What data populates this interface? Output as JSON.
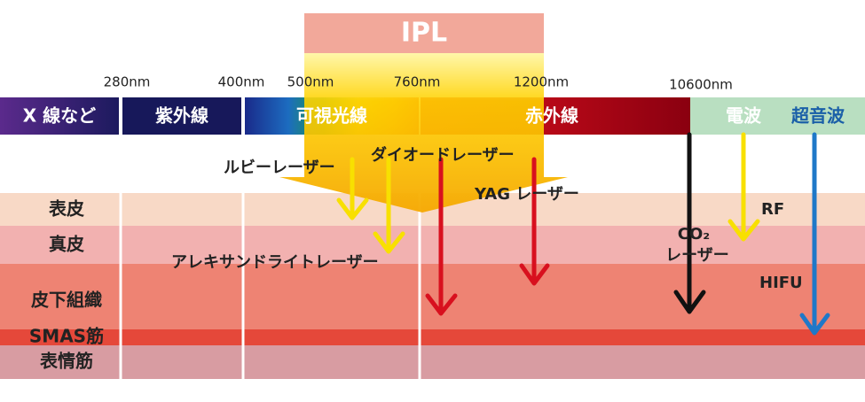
{
  "ipl": "IPL",
  "wavelengths": [
    "280nm",
    "400nm",
    "500nm",
    "760nm",
    "1200nm",
    "10600nm"
  ],
  "bands": [
    "X 線など",
    "紫外線",
    "可視光線",
    "赤外線",
    "電波",
    "超音波"
  ],
  "layers": [
    "表皮",
    "真皮",
    "皮下組織",
    "SMAS筋",
    "表情筋"
  ],
  "treatments": {
    "ruby": "ルビーレーザー",
    "diode": "ダイオードレーザー",
    "yag": "YAG レーザー",
    "alexandrite": "アレキサンドライトレーザー",
    "co2": [
      "CO₂",
      "レーザー"
    ],
    "rf": "RF",
    "hifu": "HIFU"
  }
}
